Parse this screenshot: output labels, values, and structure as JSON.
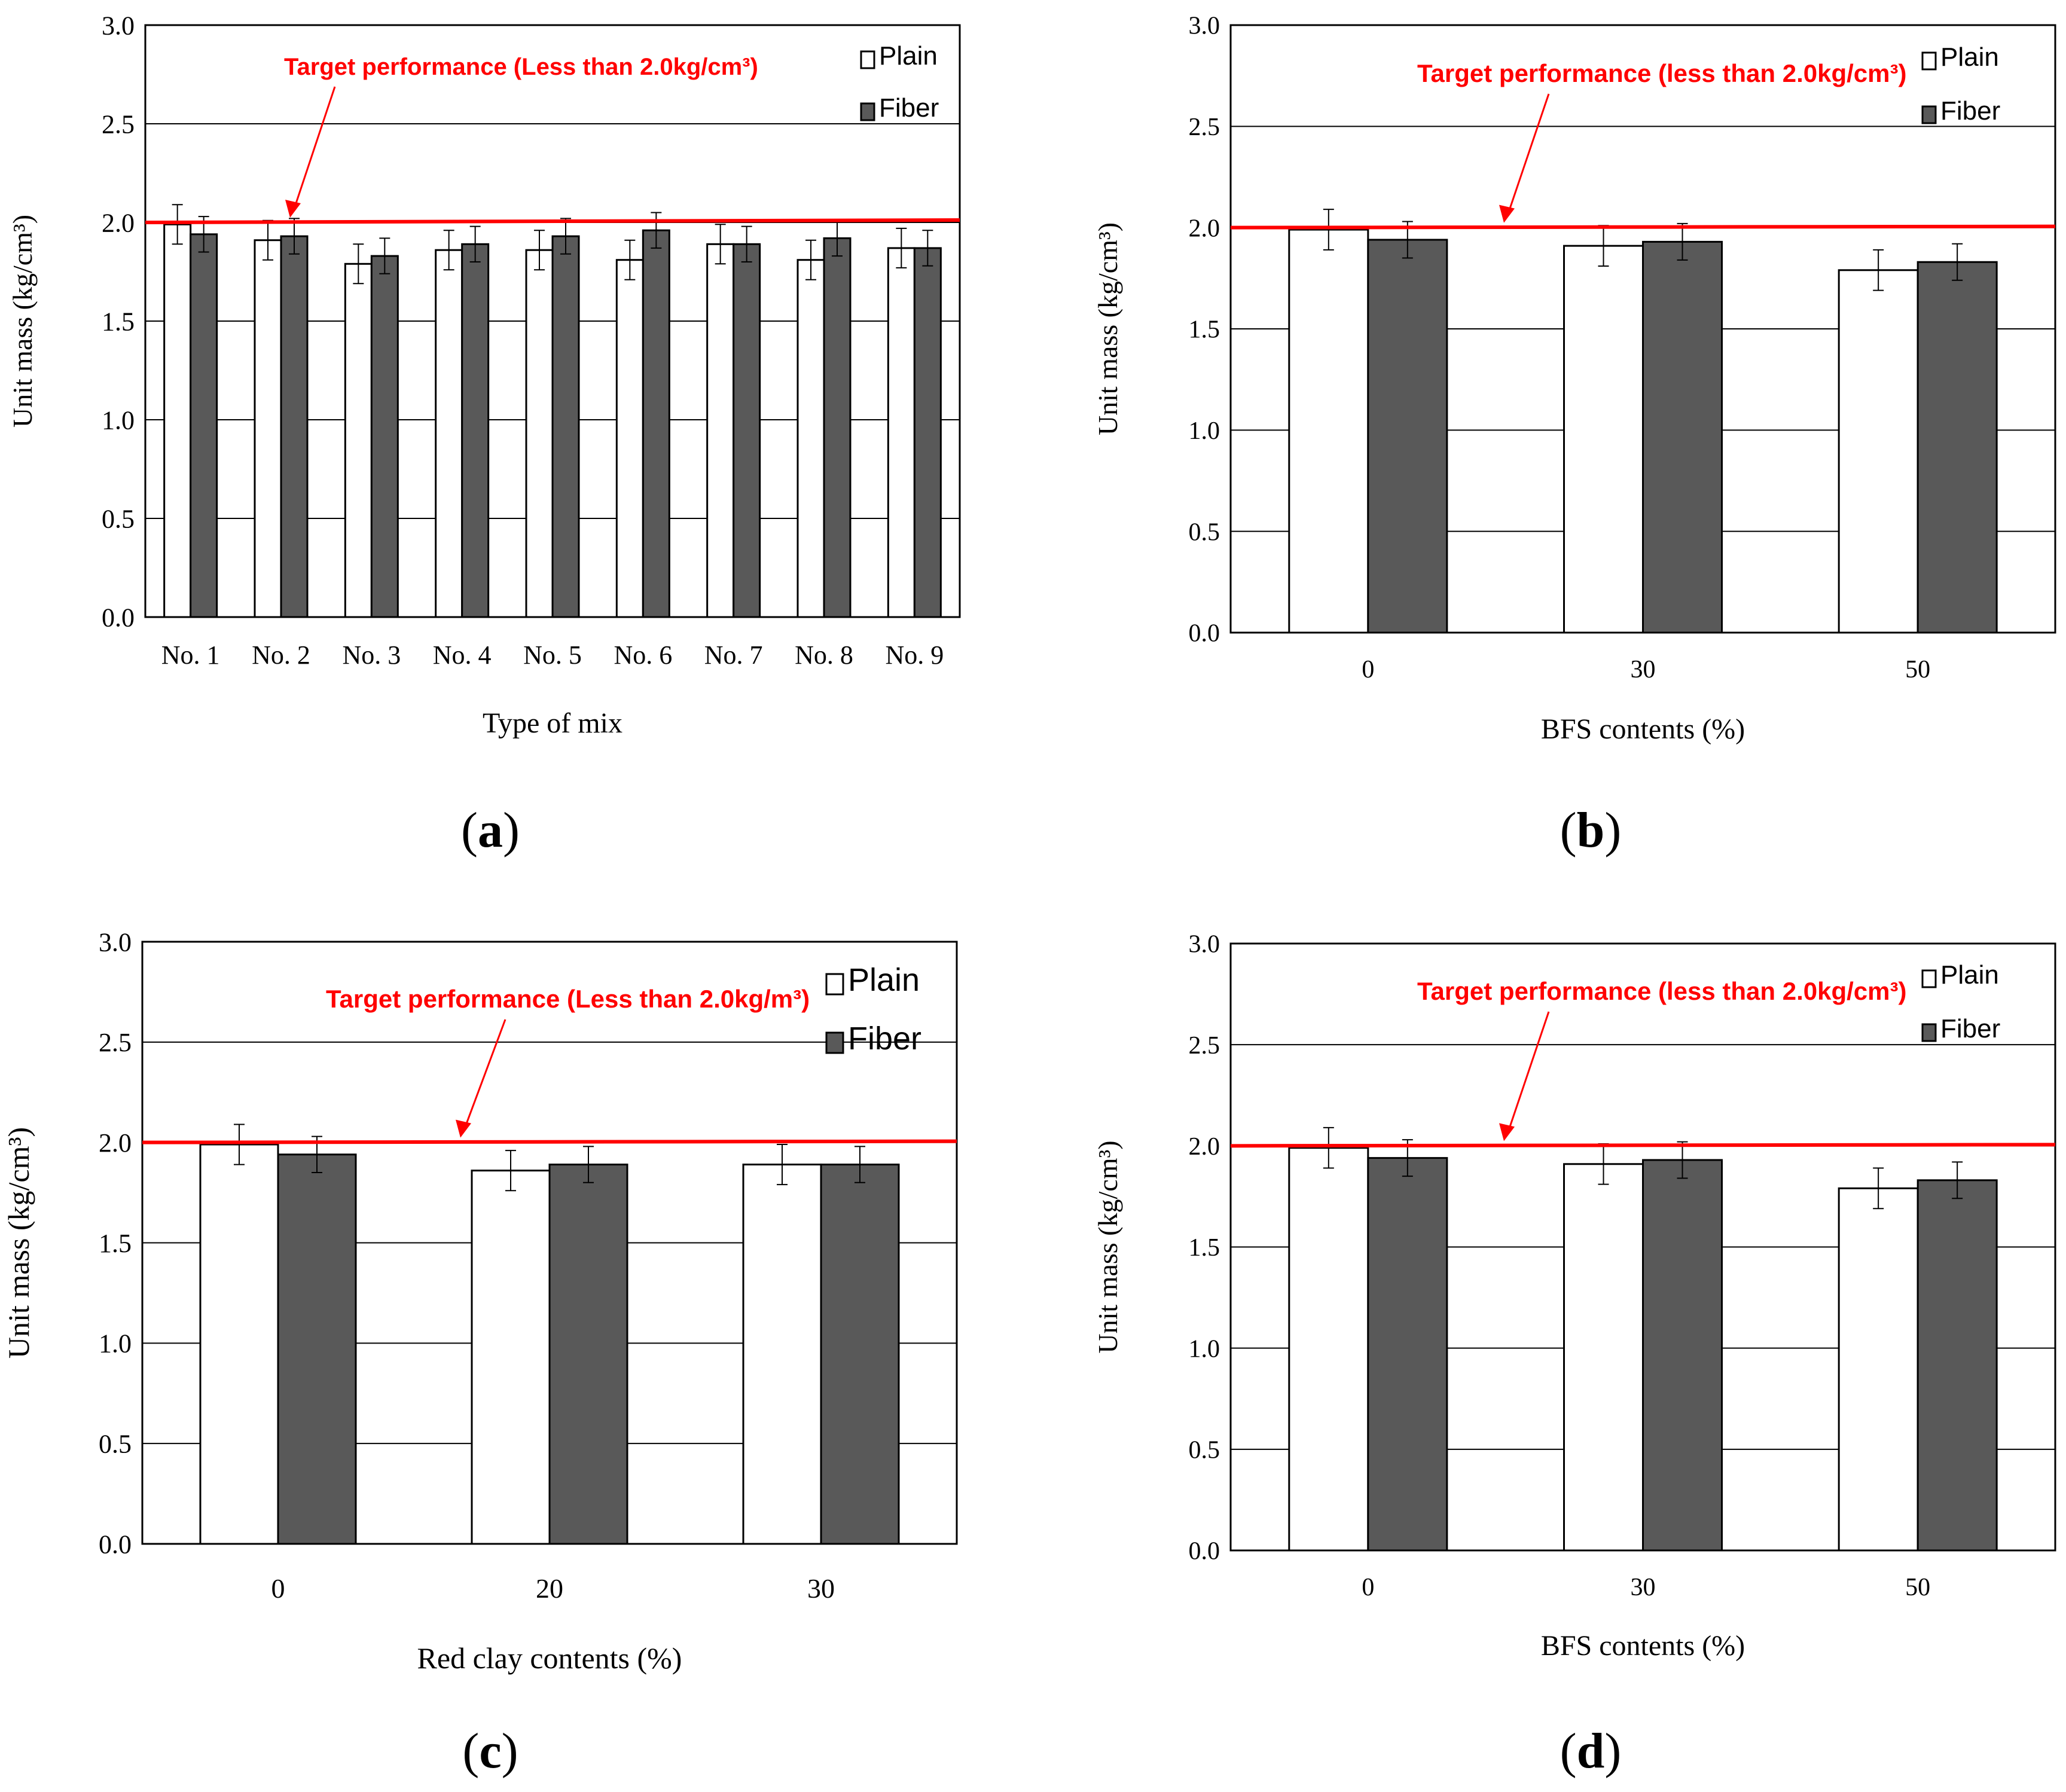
{
  "colors": {
    "plain_fill": "#ffffff",
    "fiber_fill": "#595959",
    "target_line": "#ff0000",
    "axis": "#000000",
    "grid": "#000000"
  },
  "chart_data": [
    {
      "panel": "a",
      "type": "bar",
      "title": "",
      "xlabel": "Type of mix",
      "ylabel": "Unit mass (kg/cm³)",
      "ylim": [
        0,
        3.0
      ],
      "yticks": [
        "0.0",
        "0.5",
        "1.0",
        "1.5",
        "2.0",
        "2.5",
        "3.0"
      ],
      "grid": true,
      "legend_position": "top-right",
      "categories": [
        "No. 1",
        "No. 2",
        "No. 3",
        "No. 4",
        "No. 5",
        "No. 6",
        "No. 7",
        "No. 8",
        "No. 9"
      ],
      "series": [
        {
          "name": "Plain",
          "values": [
            1.99,
            1.91,
            1.79,
            1.86,
            1.86,
            1.81,
            1.89,
            1.81,
            1.87
          ],
          "errors": [
            0.1,
            0.1,
            0.1,
            0.1,
            0.1,
            0.1,
            0.1,
            0.1,
            0.1
          ]
        },
        {
          "name": "Fiber",
          "values": [
            1.94,
            1.93,
            1.83,
            1.89,
            1.93,
            1.96,
            1.89,
            1.92,
            1.87
          ],
          "errors": [
            0.09,
            0.09,
            0.09,
            0.09,
            0.09,
            0.09,
            0.09,
            0.09,
            0.09
          ]
        }
      ],
      "target_value": 2.0,
      "target_label": "Target performance (Less than 2.0kg/cm³)",
      "caption_letter": "a"
    },
    {
      "panel": "b",
      "type": "bar",
      "title": "",
      "xlabel": "BFS contents (%)",
      "ylabel": "Unit mass (kg/cm³)",
      "ylim": [
        0,
        3.0
      ],
      "yticks": [
        "0.0",
        "0.5",
        "1.0",
        "1.5",
        "2.0",
        "2.5",
        "3.0"
      ],
      "grid": true,
      "legend_position": "top-right",
      "categories": [
        "0",
        "30",
        "50"
      ],
      "series": [
        {
          "name": "Plain",
          "values": [
            1.99,
            1.91,
            1.79
          ],
          "errors": [
            0.1,
            0.1,
            0.1
          ]
        },
        {
          "name": "Fiber",
          "values": [
            1.94,
            1.93,
            1.83
          ],
          "errors": [
            0.09,
            0.09,
            0.09
          ]
        }
      ],
      "target_value": 2.0,
      "target_label": "Target performance (less than 2.0kg/cm³)",
      "caption_letter": "b"
    },
    {
      "panel": "c",
      "type": "bar",
      "title": "",
      "xlabel": "Red clay contents (%)",
      "ylabel": "Unit mass (kg/cm³)",
      "ylim": [
        0,
        3.0
      ],
      "yticks": [
        "0.0",
        "0.5",
        "1.0",
        "1.5",
        "2.0",
        "2.5",
        "3.0"
      ],
      "grid": true,
      "legend_position": "top-right",
      "categories": [
        "0",
        "20",
        "30"
      ],
      "series": [
        {
          "name": "Plain",
          "values": [
            1.99,
            1.86,
            1.89
          ],
          "errors": [
            0.1,
            0.1,
            0.1
          ]
        },
        {
          "name": "Fiber",
          "values": [
            1.94,
            1.89,
            1.89
          ],
          "errors": [
            0.09,
            0.09,
            0.09
          ]
        }
      ],
      "target_value": 2.0,
      "target_label": "Target performance (Less than 2.0kg/m³)",
      "caption_letter": "c"
    },
    {
      "panel": "d",
      "type": "bar",
      "title": "",
      "xlabel": "BFS contents (%)",
      "ylabel": "Unit mass (kg/cm³)",
      "ylim": [
        0,
        3.0
      ],
      "yticks": [
        "0.0",
        "0.5",
        "1.0",
        "1.5",
        "2.0",
        "2.5",
        "3.0"
      ],
      "grid": true,
      "legend_position": "top-right",
      "categories": [
        "0",
        "30",
        "50"
      ],
      "series": [
        {
          "name": "Plain",
          "values": [
            1.99,
            1.91,
            1.79
          ],
          "errors": [
            0.1,
            0.1,
            0.1
          ]
        },
        {
          "name": "Fiber",
          "values": [
            1.94,
            1.93,
            1.83
          ],
          "errors": [
            0.09,
            0.09,
            0.09
          ]
        }
      ],
      "target_value": 2.0,
      "target_label": "Target performance (less than 2.0kg/cm³)",
      "caption_letter": "d"
    }
  ]
}
